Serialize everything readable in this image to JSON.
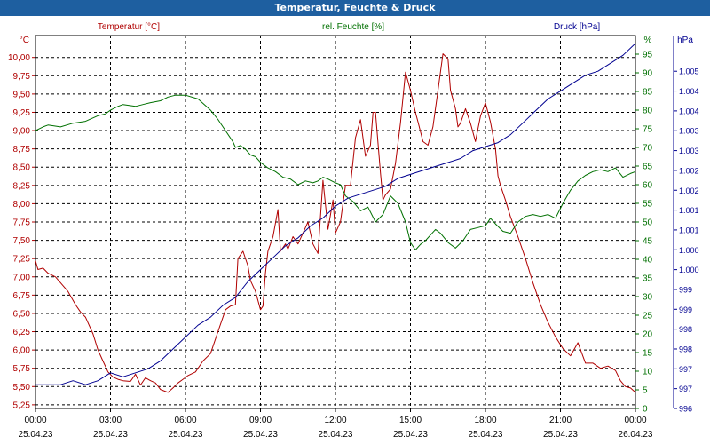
{
  "window_title": "Temperatur, Feuchte & Druck",
  "colors": {
    "temperature": "#b00000",
    "humidity": "#007000",
    "pressure": "#000090",
    "title_bar": "#1e5fa0"
  },
  "chart_data": {
    "type": "line",
    "title": "Temperatur, Feuchte & Druck",
    "x_label_times": [
      "00:00",
      "03:00",
      "06:00",
      "09:00",
      "12:00",
      "15:00",
      "18:00",
      "21:00",
      "00:00"
    ],
    "x_label_dates": [
      "25.04.23",
      "25.04.23",
      "25.04.23",
      "25.04.23",
      "25.04.23",
      "25.04.23",
      "25.04.23",
      "25.04.23",
      "26.04.23"
    ],
    "x_range_hours": [
      0,
      24
    ],
    "grid": true,
    "axes": {
      "temperature": {
        "legend": "Temperatur [°C]",
        "unit": "°C",
        "position": "left",
        "range": [
          5.2,
          10.3
        ],
        "ticks": [
          "5,25",
          "5,50",
          "5,75",
          "6,00",
          "6,25",
          "6,50",
          "6,75",
          "7,00",
          "7,25",
          "7,50",
          "7,75",
          "8,00",
          "8,25",
          "8,50",
          "8,75",
          "9,00",
          "9,25",
          "9,50",
          "9,75",
          "10,00"
        ],
        "tick_values": [
          5.25,
          5.5,
          5.75,
          6.0,
          6.25,
          6.5,
          6.75,
          7.0,
          7.25,
          7.5,
          7.75,
          8.0,
          8.25,
          8.5,
          8.75,
          9.0,
          9.25,
          9.5,
          9.75,
          10.0
        ]
      },
      "humidity": {
        "legend": "rel. Feuchte [%]",
        "unit": "%",
        "position": "right-inner",
        "range": [
          0,
          100
        ],
        "ticks": [
          "0",
          "5",
          "10",
          "15",
          "20",
          "25",
          "30",
          "35",
          "40",
          "45",
          "50",
          "55",
          "60",
          "65",
          "70",
          "75",
          "80",
          "85",
          "90",
          "95"
        ],
        "tick_values": [
          0,
          5,
          10,
          15,
          20,
          25,
          30,
          35,
          40,
          45,
          50,
          55,
          60,
          65,
          70,
          75,
          80,
          85,
          90,
          95
        ]
      },
      "pressure": {
        "legend": "Druck [hPa]",
        "unit": "hPa",
        "position": "right-outer",
        "range": [
          996.0,
          1005.4
        ],
        "ticks": [
          "996",
          "997",
          "997",
          "998",
          "998",
          "999",
          "999",
          "1.000",
          "1.000",
          "1.001",
          "1.001",
          "1.002",
          "1.002",
          "1.003",
          "1.003",
          "1.004",
          "1.004",
          "1.005"
        ],
        "tick_values": [
          996.0,
          996.5,
          997.0,
          997.5,
          998.0,
          998.5,
          999.0,
          999.5,
          1000.0,
          1000.5,
          1001.0,
          1001.5,
          1002.0,
          1002.5,
          1003.0,
          1003.5,
          1004.0,
          1004.5
        ]
      }
    },
    "series": [
      {
        "name": "Temperatur [°C]",
        "axis": "temperature",
        "color": "#b00000",
        "x": [
          0,
          0.1,
          0.3,
          0.5,
          0.8,
          1.0,
          1.3,
          1.6,
          1.8,
          2.0,
          2.3,
          2.5,
          2.7,
          2.9,
          3.1,
          3.3,
          3.5,
          3.8,
          4.0,
          4.2,
          4.4,
          4.6,
          4.8,
          5.0,
          5.3,
          5.5,
          5.7,
          5.9,
          6.1,
          6.4,
          6.7,
          7.0,
          7.3,
          7.6,
          7.8,
          8.0,
          8.1,
          8.3,
          8.5,
          8.6,
          8.8,
          9.0,
          9.1,
          9.2,
          9.3,
          9.5,
          9.7,
          9.8,
          10.0,
          10.1,
          10.3,
          10.5,
          10.7,
          10.9,
          11.1,
          11.3,
          11.5,
          11.7,
          11.9,
          12.0,
          12.2,
          12.4,
          12.6,
          12.8,
          13.0,
          13.2,
          13.4,
          13.5,
          13.6,
          13.8,
          13.9,
          14.0,
          14.2,
          14.4,
          14.6,
          14.8,
          15.0,
          15.2,
          15.3,
          15.5,
          15.7,
          15.9,
          16.1,
          16.3,
          16.5,
          16.6,
          16.8,
          16.9,
          17.0,
          17.2,
          17.4,
          17.6,
          17.8,
          18.0,
          18.2,
          18.4,
          18.5,
          18.6,
          18.8,
          19.0,
          19.3,
          19.6,
          19.9,
          20.2,
          20.5,
          20.8,
          21.1,
          21.4,
          21.7,
          22.0,
          22.3,
          22.6,
          22.9,
          23.2,
          23.4,
          23.6,
          23.8,
          24.0
        ],
        "values": [
          7.22,
          7.1,
          7.12,
          7.05,
          7.0,
          6.92,
          6.8,
          6.62,
          6.52,
          6.45,
          6.22,
          6.0,
          5.85,
          5.7,
          5.63,
          5.6,
          5.58,
          5.57,
          5.67,
          5.52,
          5.62,
          5.58,
          5.55,
          5.46,
          5.42,
          5.48,
          5.55,
          5.6,
          5.65,
          5.7,
          5.85,
          5.95,
          6.25,
          6.55,
          6.6,
          6.62,
          7.25,
          7.35,
          7.15,
          6.95,
          6.8,
          6.55,
          6.6,
          7.05,
          7.35,
          7.55,
          7.92,
          7.35,
          7.45,
          7.38,
          7.55,
          7.45,
          7.6,
          7.75,
          7.45,
          7.32,
          8.32,
          7.65,
          8.05,
          7.6,
          7.75,
          8.25,
          8.25,
          8.9,
          9.15,
          8.65,
          8.8,
          9.25,
          9.25,
          8.42,
          8.05,
          8.12,
          8.2,
          8.55,
          9.1,
          9.8,
          9.55,
          9.25,
          9.12,
          8.85,
          8.8,
          9.05,
          9.55,
          10.05,
          9.98,
          9.55,
          9.3,
          9.05,
          9.1,
          9.3,
          9.1,
          8.85,
          9.2,
          9.38,
          9.12,
          8.75,
          8.38,
          8.25,
          8.05,
          7.82,
          7.55,
          7.25,
          6.92,
          6.62,
          6.38,
          6.18,
          6.02,
          5.92,
          6.1,
          5.82,
          5.82,
          5.75,
          5.78,
          5.72,
          5.58,
          5.5,
          5.48,
          5.42
        ]
      },
      {
        "name": "rel. Feuchte [%]",
        "axis": "humidity",
        "color": "#007000",
        "x": [
          0,
          0.3,
          0.5,
          1.0,
          1.5,
          2.0,
          2.5,
          2.8,
          3.0,
          3.3,
          3.5,
          4.0,
          4.3,
          4.6,
          5.0,
          5.3,
          5.6,
          6.0,
          6.5,
          7.0,
          7.3,
          7.6,
          7.9,
          8.0,
          8.2,
          8.4,
          8.6,
          8.8,
          9.0,
          9.3,
          9.6,
          9.9,
          10.2,
          10.5,
          10.8,
          11.1,
          11.3,
          11.5,
          11.7,
          12.0,
          12.2,
          12.4,
          12.7,
          13.0,
          13.3,
          13.6,
          13.9,
          14.2,
          14.5,
          14.8,
          15.0,
          15.2,
          15.4,
          15.6,
          15.8,
          16.0,
          16.2,
          16.5,
          16.8,
          17.1,
          17.4,
          17.7,
          18.0,
          18.2,
          18.4,
          18.7,
          19.0,
          19.3,
          19.6,
          19.9,
          20.2,
          20.5,
          20.8,
          21.1,
          21.4,
          21.7,
          22.0,
          22.3,
          22.6,
          22.9,
          23.2,
          23.5,
          23.8,
          24.0
        ],
        "values": [
          74.5,
          75.5,
          76.0,
          75.5,
          76.5,
          77.0,
          78.5,
          79.0,
          80.0,
          81.0,
          81.5,
          81.0,
          81.5,
          82.0,
          82.5,
          83.5,
          84.0,
          84.0,
          83.0,
          80.0,
          77.5,
          74.5,
          71.5,
          70.0,
          70.5,
          69.5,
          68.0,
          67.5,
          66.0,
          64.5,
          63.5,
          62.0,
          61.5,
          60.0,
          61.0,
          60.5,
          61.0,
          62.0,
          61.5,
          60.5,
          60.0,
          57.0,
          55.5,
          53.0,
          54.0,
          50.0,
          52.0,
          57.0,
          55.0,
          50.0,
          44.5,
          42.5,
          44.0,
          45.0,
          46.5,
          48.0,
          47.0,
          44.5,
          43.0,
          45.0,
          48.0,
          48.5,
          49.0,
          51.0,
          49.5,
          47.5,
          47.0,
          50.0,
          51.5,
          52.0,
          51.5,
          52.0,
          51.0,
          55.0,
          58.5,
          61.0,
          62.5,
          63.5,
          64.0,
          63.5,
          64.5,
          62.0,
          63.0,
          63.5
        ]
      },
      {
        "name": "Druck [hPa]",
        "axis": "pressure",
        "color": "#000090",
        "x": [
          0,
          0.5,
          1.0,
          1.5,
          2.0,
          2.5,
          3.0,
          3.5,
          4.0,
          4.5,
          5.0,
          5.5,
          6.0,
          6.5,
          7.0,
          7.5,
          8.0,
          8.5,
          9.0,
          9.5,
          10.0,
          10.5,
          11.0,
          11.5,
          12.0,
          12.5,
          13.0,
          13.5,
          14.0,
          14.5,
          15.0,
          15.5,
          16.0,
          16.5,
          17.0,
          17.5,
          18.0,
          18.5,
          19.0,
          19.5,
          20.0,
          20.5,
          21.0,
          21.5,
          22.0,
          22.5,
          23.0,
          23.5,
          24.0
        ],
        "values": [
          996.6,
          996.6,
          996.6,
          996.7,
          996.6,
          996.7,
          996.9,
          996.8,
          996.9,
          997.0,
          997.2,
          997.5,
          997.8,
          998.1,
          998.3,
          998.6,
          998.8,
          999.2,
          999.5,
          999.8,
          1000.1,
          1000.3,
          1000.6,
          1000.8,
          1001.1,
          1001.3,
          1001.4,
          1001.5,
          1001.6,
          1001.8,
          1001.9,
          1002.0,
          1002.1,
          1002.2,
          1002.3,
          1002.5,
          1002.6,
          1002.7,
          1002.9,
          1003.2,
          1003.5,
          1003.8,
          1004.0,
          1004.2,
          1004.4,
          1004.5,
          1004.7,
          1004.9,
          1005.2
        ]
      }
    ]
  }
}
